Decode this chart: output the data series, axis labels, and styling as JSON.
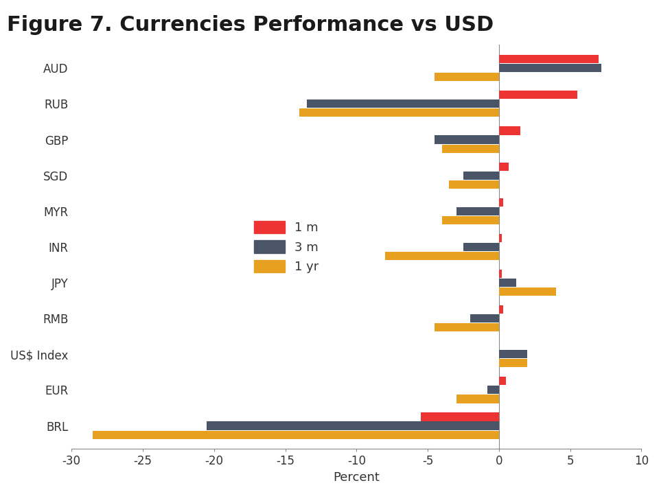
{
  "title": "Figure 7. Currencies Performance vs USD",
  "categories": [
    "BRL",
    "EUR",
    "US$ Index",
    "RMB",
    "JPY",
    "INR",
    "MYR",
    "SGD",
    "GBP",
    "RUB",
    "AUD"
  ],
  "series": {
    "1 m": [
      -5.5,
      0.5,
      0.0,
      0.3,
      0.2,
      0.2,
      0.3,
      0.7,
      1.5,
      5.5,
      7.0
    ],
    "3 m": [
      -20.5,
      -0.8,
      2.0,
      -2.0,
      1.2,
      -2.5,
      -3.0,
      -2.5,
      -4.5,
      -13.5,
      7.2
    ],
    "1 yr": [
      -28.5,
      -3.0,
      2.0,
      -4.5,
      4.0,
      -8.0,
      -4.0,
      -3.5,
      -4.0,
      -14.0,
      -4.5
    ]
  },
  "colors": {
    "1 m": "#EE3333",
    "3 m": "#4A5568",
    "1 yr": "#E8A020"
  },
  "xlim": [
    -30,
    10
  ],
  "xticks": [
    -30,
    -25,
    -20,
    -15,
    -10,
    -5,
    0,
    5,
    10
  ],
  "xlabel": "Percent",
  "bar_height": 0.25,
  "background_color": "#FFFFFF",
  "title_fontsize": 22,
  "axis_fontsize": 12,
  "legend_fontsize": 13
}
